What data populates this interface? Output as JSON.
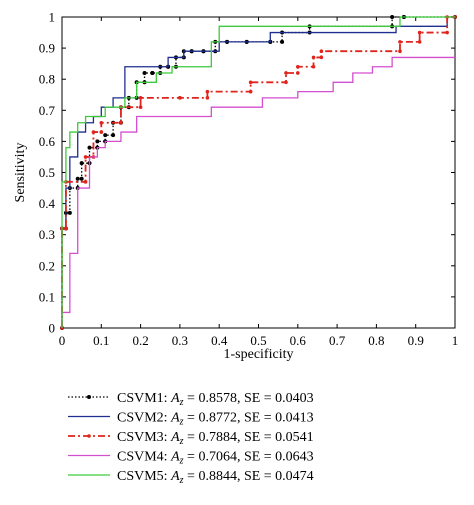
{
  "chart_data": {
    "type": "line",
    "xlabel": "1-specificity",
    "ylabel": "Sensitivity",
    "xlim": [
      0,
      1
    ],
    "ylim": [
      0,
      1
    ],
    "xticks": [
      "0",
      "0.1",
      "0.2",
      "0.3",
      "0.4",
      "0.5",
      "0.6",
      "0.7",
      "0.8",
      "0.9",
      "1"
    ],
    "yticks": [
      "0",
      "0.1",
      "0.2",
      "0.3",
      "0.4",
      "0.5",
      "0.6",
      "0.7",
      "0.8",
      "0.9",
      "1"
    ],
    "grid": false,
    "legend_position": "bottom",
    "series": [
      {
        "name": "CSVM1",
        "legend": {
          "pre": "CSVM1: ",
          "var": "A",
          "sub": "z",
          "post": " = 0.8578, SE = 0.0403"
        },
        "color": "#000000",
        "style": "dotted-marker",
        "x": [
          0,
          0,
          0.01,
          0.01,
          0.02,
          0.02,
          0.04,
          0.04,
          0.05,
          0.05,
          0.07,
          0.07,
          0.09,
          0.09,
          0.11,
          0.11,
          0.13,
          0.13,
          0.15,
          0.15,
          0.17,
          0.17,
          0.19,
          0.19,
          0.21,
          0.21,
          0.23,
          0.23,
          0.25,
          0.25,
          0.27,
          0.27,
          0.29,
          0.29,
          0.31,
          0.31,
          0.33,
          0.33,
          0.36,
          0.36,
          0.39,
          0.39,
          0.42,
          0.42,
          0.47,
          0.47,
          0.53,
          0.53,
          0.56,
          0.56,
          0.63,
          0.63,
          0.84,
          0.84,
          0.87,
          0.87,
          1
        ],
        "y": [
          0,
          0.32,
          0.32,
          0.37,
          0.37,
          0.45,
          0.45,
          0.48,
          0.48,
          0.53,
          0.53,
          0.58,
          0.58,
          0.6,
          0.6,
          0.62,
          0.62,
          0.66,
          0.66,
          0.71,
          0.71,
          0.74,
          0.74,
          0.79,
          0.79,
          0.82,
          0.82,
          0.82,
          0.82,
          0.84,
          0.84,
          0.84,
          0.84,
          0.87,
          0.87,
          0.89,
          0.89,
          0.89,
          0.89,
          0.89,
          0.89,
          0.92,
          0.92,
          0.92,
          0.92,
          0.92,
          0.92,
          0.92,
          0.92,
          0.95,
          0.95,
          0.97,
          0.97,
          1.0,
          1.0,
          1.0,
          1.0
        ]
      },
      {
        "name": "CSVM2",
        "legend": {
          "pre": "CSVM2: ",
          "var": "A",
          "sub": "z",
          "post": " = 0.8772, SE = 0.0413"
        },
        "color": "#1f2f8f",
        "style": "solid",
        "x": [
          0,
          0,
          0.01,
          0.01,
          0.02,
          0.02,
          0.04,
          0.04,
          0.06,
          0.06,
          0.08,
          0.08,
          0.1,
          0.1,
          0.13,
          0.13,
          0.16,
          0.16,
          0.21,
          0.21,
          0.24,
          0.24,
          0.27,
          0.27,
          0.31,
          0.31,
          0.36,
          0.36,
          0.4,
          0.4,
          0.45,
          0.45,
          0.53,
          0.53,
          0.85,
          0.85,
          0.98,
          0.98,
          1
        ],
        "y": [
          0,
          0.32,
          0.32,
          0.45,
          0.45,
          0.55,
          0.55,
          0.63,
          0.63,
          0.66,
          0.66,
          0.68,
          0.68,
          0.71,
          0.71,
          0.74,
          0.74,
          0.84,
          0.84,
          0.84,
          0.84,
          0.84,
          0.84,
          0.87,
          0.87,
          0.89,
          0.89,
          0.89,
          0.89,
          0.92,
          0.92,
          0.92,
          0.92,
          0.95,
          0.95,
          0.97,
          0.97,
          1.0,
          1.0
        ]
      },
      {
        "name": "CSVM3",
        "legend": {
          "pre": "CSVM3: ",
          "var": "A",
          "sub": "z",
          "post": " = 0.7884, SE = 0.0541"
        },
        "color": "#e0231b",
        "style": "dashdot-marker",
        "x": [
          0,
          0,
          0.01,
          0.01,
          0.06,
          0.06,
          0.08,
          0.08,
          0.1,
          0.1,
          0.15,
          0.15,
          0.2,
          0.2,
          0.3,
          0.3,
          0.37,
          0.37,
          0.48,
          0.48,
          0.57,
          0.57,
          0.6,
          0.6,
          0.64,
          0.64,
          0.66,
          0.66,
          0.86,
          0.86,
          0.91,
          0.91,
          0.98,
          0.98,
          1
        ],
        "y": [
          0,
          0.32,
          0.32,
          0.47,
          0.47,
          0.55,
          0.55,
          0.63,
          0.63,
          0.66,
          0.66,
          0.71,
          0.71,
          0.74,
          0.74,
          0.74,
          0.74,
          0.76,
          0.76,
          0.79,
          0.79,
          0.82,
          0.82,
          0.84,
          0.84,
          0.87,
          0.87,
          0.89,
          0.89,
          0.92,
          0.92,
          0.95,
          0.95,
          1.0,
          1.0
        ]
      },
      {
        "name": "CSVM4",
        "legend": {
          "pre": "CSVM4: ",
          "var": "A",
          "sub": "z",
          "post": " = 0.7064, SE = 0.0643"
        },
        "color": "#d44fcf",
        "style": "solid",
        "x": [
          0,
          0,
          0.02,
          0.02,
          0.04,
          0.04,
          0.07,
          0.07,
          0.09,
          0.09,
          0.11,
          0.11,
          0.15,
          0.15,
          0.19,
          0.19,
          0.28,
          0.28,
          0.38,
          0.38,
          0.45,
          0.45,
          0.51,
          0.51,
          0.6,
          0.6,
          0.69,
          0.69,
          0.74,
          0.74,
          0.79,
          0.79,
          0.84,
          0.84,
          0.89,
          0.89,
          1
        ],
        "y": [
          0,
          0.05,
          0.05,
          0.24,
          0.24,
          0.45,
          0.45,
          0.55,
          0.55,
          0.58,
          0.58,
          0.6,
          0.6,
          0.63,
          0.63,
          0.68,
          0.68,
          0.68,
          0.68,
          0.71,
          0.71,
          0.71,
          0.71,
          0.74,
          0.74,
          0.76,
          0.76,
          0.79,
          0.79,
          0.82,
          0.82,
          0.84,
          0.84,
          0.87,
          0.87,
          0.87,
          0.87
        ]
      },
      {
        "name": "CSVM5",
        "legend": {
          "pre": "CSVM5: ",
          "var": "A",
          "sub": "z",
          "post": " = 0.8844, SE = 0.0474"
        },
        "color": "#3ec93c",
        "style": "solid",
        "x": [
          0,
          0,
          0.01,
          0.01,
          0.02,
          0.02,
          0.04,
          0.04,
          0.06,
          0.06,
          0.11,
          0.11,
          0.16,
          0.16,
          0.19,
          0.19,
          0.24,
          0.24,
          0.28,
          0.28,
          0.38,
          0.38,
          0.4,
          0.4,
          0.83,
          0.83,
          0.86,
          0.86,
          1
        ],
        "y": [
          0,
          0.47,
          0.47,
          0.58,
          0.58,
          0.63,
          0.63,
          0.66,
          0.66,
          0.68,
          0.68,
          0.71,
          0.71,
          0.74,
          0.74,
          0.79,
          0.79,
          0.82,
          0.82,
          0.84,
          0.84,
          0.92,
          0.92,
          0.97,
          0.97,
          0.97,
          0.97,
          1.0,
          1.0
        ]
      }
    ]
  }
}
